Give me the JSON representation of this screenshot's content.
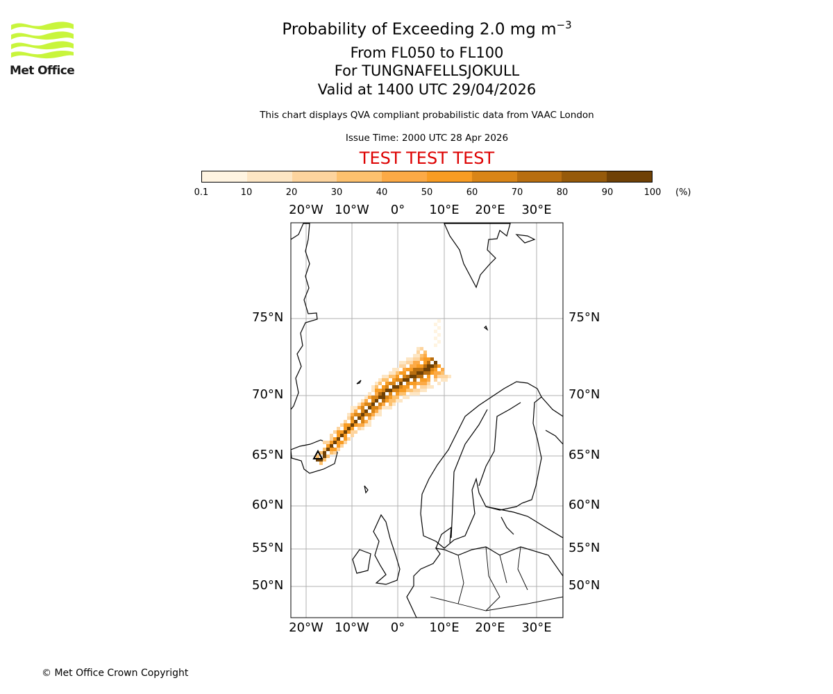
{
  "logo": {
    "text": "Met Office",
    "color": "#c8f53c"
  },
  "title": {
    "main": "Probability of Exceeding 2.0 mg m",
    "main_superscript": "−3",
    "line1": "From FL050 to FL100",
    "line2": "For TUNGNAFELLSJOKULL",
    "line3": "Valid at 1400 UTC 29/04/2026",
    "note": "This chart displays QVA compliant probabilistic data from VAAC London",
    "issue": "Issue Time: 2000 UTC 28 Apr 2026",
    "test": "TEST TEST TEST",
    "test_color": "#dd0000"
  },
  "colorbar": {
    "ticks": [
      "0.1",
      "10",
      "20",
      "30",
      "40",
      "50",
      "60",
      "70",
      "80",
      "90",
      "100"
    ],
    "unit": "(%)",
    "colors": [
      "#fff4e1",
      "#fde6c4",
      "#fdd49e",
      "#fdc16e",
      "#fcaa46",
      "#f89c23",
      "#d98517",
      "#b86e10",
      "#965a0a",
      "#6f4106"
    ]
  },
  "map": {
    "lon_labels": [
      "20°W",
      "10°W",
      "0°",
      "10°E",
      "20°E",
      "30°E"
    ],
    "lat_labels": [
      "75°N",
      "70°N",
      "65°N",
      "60°N",
      "55°N",
      "50°N"
    ],
    "gridlines": true,
    "source_marker": "volcano-triangle"
  },
  "chart_data": {
    "type": "heatmap",
    "title": "Probability of Exceeding 2.0 mg m−3",
    "plume": {
      "source_lon": -17.5,
      "source_lat": 64.7,
      "centerline": [
        [
          -17.5,
          64.7
        ],
        [
          -14,
          66.2
        ],
        [
          -10,
          67.8
        ],
        [
          -6,
          69.3
        ],
        [
          -2,
          70.5
        ],
        [
          2,
          71.2
        ],
        [
          6,
          71.8
        ],
        [
          8,
          72.4
        ]
      ],
      "max_probability_percent": 100
    },
    "xrange_deg": [
      -23,
      36
    ],
    "yrange_deg": [
      46,
      80
    ]
  },
  "footer": {
    "copyright": "© Met Office Crown Copyright"
  }
}
